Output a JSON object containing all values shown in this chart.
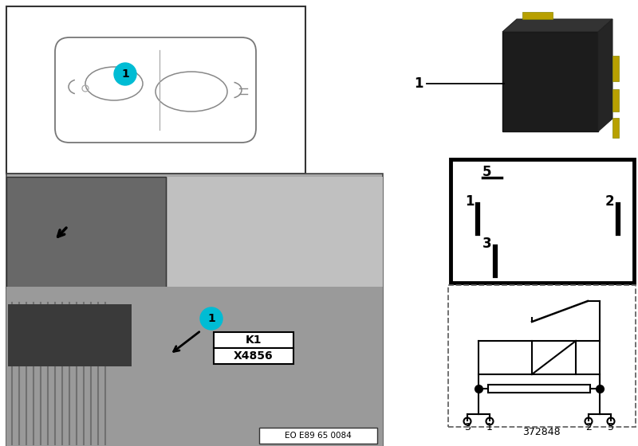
{
  "bg_color": "#ffffff",
  "cyan_color": "#00bcd4",
  "k1_text": "K1",
  "x4856_text": "X4856",
  "eo_text": "EO E89 65 0084",
  "part_num": "372848",
  "car_line": "#888888",
  "photo_gray_dark": "#7a7a7a",
  "photo_gray_light": "#c0c0c0",
  "photo_gray_main": "#a8a8a8"
}
